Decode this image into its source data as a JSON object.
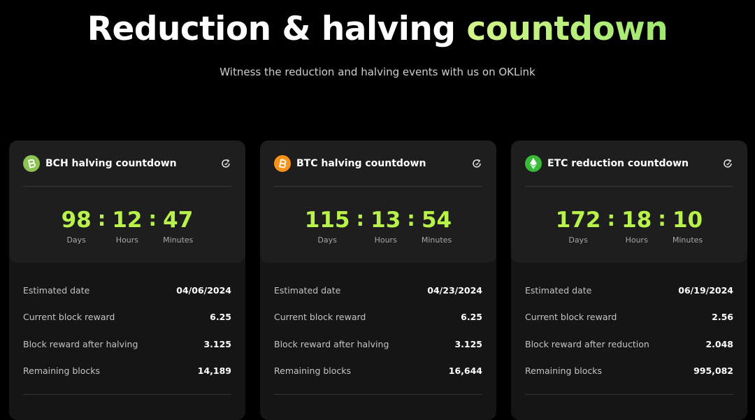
{
  "header": {
    "title": "Reduction & halving",
    "title_highlight": "countdown",
    "subtitle": "Witness the reduction and halving events with us on OKLink"
  },
  "separator": ":",
  "unit_labels": [
    "Days",
    "Hours",
    "Minutes"
  ],
  "cards": [
    {
      "title": "BCH halving countdown",
      "countdown": [
        "98",
        "12",
        "47"
      ],
      "rows": [
        [
          "Estimated date",
          "04/06/2024"
        ],
        [
          "Current block reward",
          "6.25"
        ],
        [
          "Block reward after halving",
          "3.125"
        ],
        [
          "Remaining blocks",
          "14,189"
        ]
      ]
    },
    {
      "title": "BTC halving countdown",
      "countdown": [
        "115",
        "13",
        "54"
      ],
      "rows": [
        [
          "Estimated date",
          "04/23/2024"
        ],
        [
          "Current block reward",
          "6.25"
        ],
        [
          "Block reward after halving",
          "3.125"
        ],
        [
          "Remaining blocks",
          "16,644"
        ]
      ]
    },
    {
      "title": "ETC reduction countdown",
      "countdown": [
        "172",
        "18",
        "10"
      ],
      "rows": [
        [
          "Estimated date",
          "06/19/2024"
        ],
        [
          "Current block reward",
          "2.56"
        ],
        [
          "Block reward after reduction",
          "2.048"
        ],
        [
          "Remaining blocks",
          "995,082"
        ]
      ]
    }
  ]
}
